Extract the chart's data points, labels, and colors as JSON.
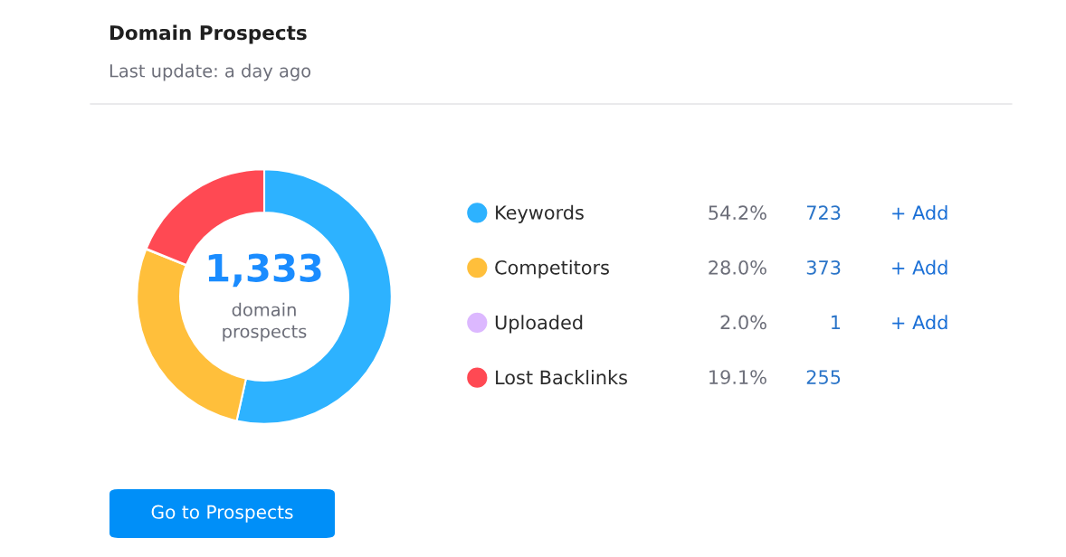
{
  "chart_data": {
    "type": "donut",
    "title": "Domain Prospects",
    "subtitle": "Last update: a day ago",
    "categories": [
      "Keywords",
      "Competitors",
      "Uploaded",
      "Lost Backlinks"
    ],
    "values": [
      723,
      373,
      1,
      255
    ],
    "colors": [
      "#2db2ff",
      "#ffbf3b",
      "#dcb8ff",
      "#ff4953"
    ],
    "data_labels": true,
    "legend": "right",
    "annotations": [
      "1,333",
      "domain prospects",
      "54.2%",
      "28.0%",
      "2.0%",
      "19.1%",
      "+ Add",
      "+ Add",
      "+ Add",
      "Go to Prospects"
    ]
  }
}
